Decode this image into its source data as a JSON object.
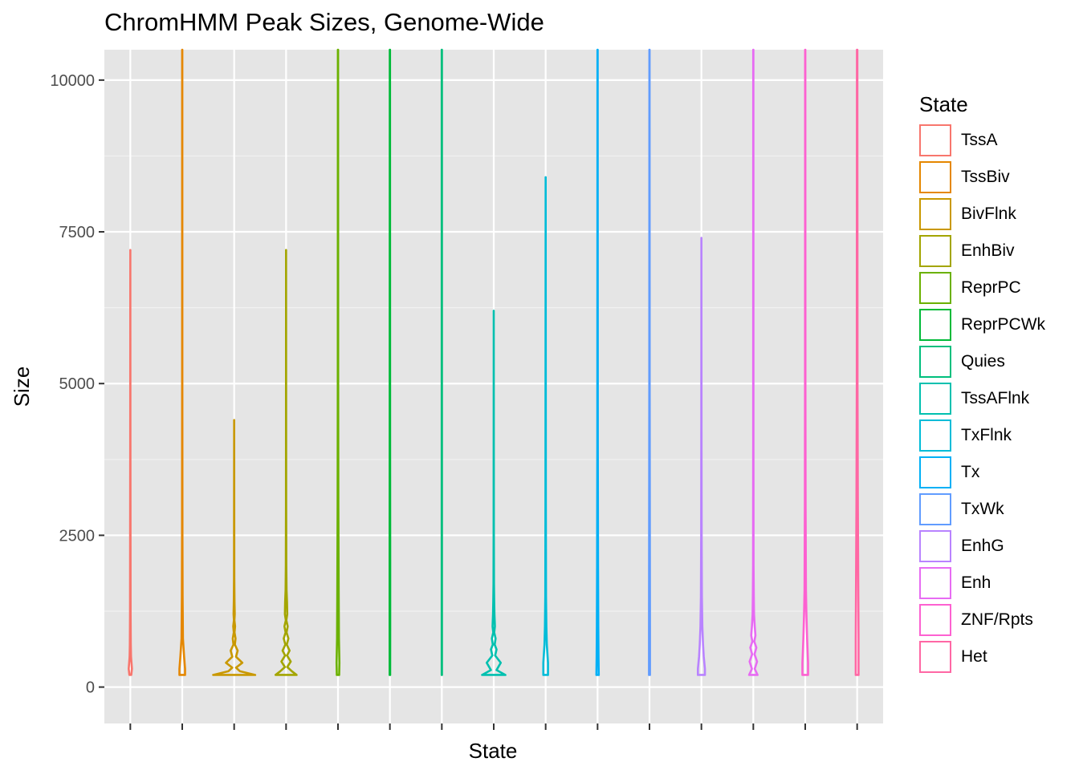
{
  "chart_data": {
    "type": "violin",
    "title": "ChromHMM Peak Sizes, Genome-Wide",
    "xlabel": "State",
    "ylabel": "Size",
    "ylim": [
      -600,
      10500
    ],
    "yticks": [
      0,
      2500,
      5000,
      7500,
      10000
    ],
    "y_tick_labels": [
      "0",
      "2500",
      "5000",
      "7500",
      "10000"
    ],
    "grid": true,
    "x_tick_labels_shown": false,
    "legend_title": "State",
    "legend_position": "right",
    "series": [
      {
        "name": "TssA",
        "color": "#F8766D",
        "max": 7200,
        "shape": [
          [
            200,
            0.04
          ],
          [
            300,
            0.07
          ],
          [
            500,
            0.03
          ],
          [
            700,
            0.02
          ],
          [
            1200,
            0.012
          ],
          [
            2500,
            0.008
          ],
          [
            4000,
            0.004
          ],
          [
            7200,
            0
          ]
        ]
      },
      {
        "name": "TssBiv",
        "color": "#E58700",
        "max": 10500,
        "shape": [
          [
            200,
            0.12
          ],
          [
            300,
            0.12
          ],
          [
            500,
            0.08
          ],
          [
            800,
            0.03
          ],
          [
            1500,
            0.015
          ],
          [
            2500,
            0.008
          ],
          [
            5000,
            0.004
          ],
          [
            10500,
            0.003
          ]
        ]
      },
      {
        "name": "BivFlnk",
        "color": "#C99800",
        "max": 4400,
        "shape": [
          [
            200,
            0.9
          ],
          [
            260,
            0.25
          ],
          [
            320,
            0.08
          ],
          [
            400,
            0.35
          ],
          [
            500,
            0.08
          ],
          [
            600,
            0.15
          ],
          [
            700,
            0.03
          ],
          [
            800,
            0.06
          ],
          [
            900,
            0.015
          ],
          [
            1000,
            0.04
          ],
          [
            1100,
            0.01
          ],
          [
            1200,
            0.025
          ],
          [
            1400,
            0.015
          ],
          [
            1600,
            0.01
          ],
          [
            1800,
            0.006
          ],
          [
            2500,
            0.004
          ],
          [
            4400,
            0
          ]
        ]
      },
      {
        "name": "EnhBiv",
        "color": "#A3A500",
        "max": 7200,
        "shape": [
          [
            200,
            0.45
          ],
          [
            260,
            0.25
          ],
          [
            330,
            0.05
          ],
          [
            420,
            0.2
          ],
          [
            520,
            0.04
          ],
          [
            600,
            0.15
          ],
          [
            700,
            0.03
          ],
          [
            800,
            0.1
          ],
          [
            900,
            0.02
          ],
          [
            1000,
            0.07
          ],
          [
            1100,
            0.01
          ],
          [
            1200,
            0.05
          ],
          [
            1400,
            0.04
          ],
          [
            1600,
            0.02
          ],
          [
            2000,
            0.01
          ],
          [
            3000,
            0.004
          ],
          [
            7200,
            0
          ]
        ]
      },
      {
        "name": "ReprPC",
        "color": "#6BB100",
        "max": 10500,
        "shape": [
          [
            200,
            0.05
          ],
          [
            400,
            0.06
          ],
          [
            800,
            0.04
          ],
          [
            1500,
            0.03
          ],
          [
            3000,
            0.015
          ],
          [
            5000,
            0.008
          ],
          [
            10500,
            0.004
          ]
        ]
      },
      {
        "name": "ReprPCWk",
        "color": "#00BA38",
        "max": 10500,
        "shape": [
          [
            200,
            0.01
          ],
          [
            1000,
            0.012
          ],
          [
            2000,
            0.012
          ],
          [
            4000,
            0.008
          ],
          [
            10500,
            0.004
          ]
        ]
      },
      {
        "name": "Quies",
        "color": "#00BF7D",
        "max": 10500,
        "shape": [
          [
            200,
            0.005
          ],
          [
            2000,
            0.005
          ],
          [
            10500,
            0.004
          ]
        ]
      },
      {
        "name": "TssAFlnk",
        "color": "#00C0AF",
        "max": 6200,
        "shape": [
          [
            200,
            0.5
          ],
          [
            280,
            0.12
          ],
          [
            400,
            0.3
          ],
          [
            520,
            0.06
          ],
          [
            620,
            0.12
          ],
          [
            700,
            0.04
          ],
          [
            800,
            0.08
          ],
          [
            900,
            0.02
          ],
          [
            1000,
            0.05
          ],
          [
            1200,
            0.03
          ],
          [
            1400,
            0.02
          ],
          [
            1700,
            0.01
          ],
          [
            2500,
            0.005
          ],
          [
            6200,
            0
          ]
        ]
      },
      {
        "name": "TxFlnk",
        "color": "#00BCD8",
        "max": 8400,
        "shape": [
          [
            200,
            0.1
          ],
          [
            400,
            0.1
          ],
          [
            700,
            0.05
          ],
          [
            1000,
            0.03
          ],
          [
            1500,
            0.015
          ],
          [
            3000,
            0.008
          ],
          [
            8400,
            0
          ]
        ]
      },
      {
        "name": "Tx",
        "color": "#00B0F6",
        "max": 10500,
        "shape": [
          [
            200,
            0.05
          ],
          [
            500,
            0.04
          ],
          [
            1000,
            0.03
          ],
          [
            2000,
            0.02
          ],
          [
            4000,
            0.01
          ],
          [
            10500,
            0.004
          ]
        ]
      },
      {
        "name": "TxWk",
        "color": "#619CFF",
        "max": 10500,
        "shape": [
          [
            200,
            0.02
          ],
          [
            1000,
            0.02
          ],
          [
            2500,
            0.015
          ],
          [
            5000,
            0.008
          ],
          [
            10500,
            0.004
          ]
        ]
      },
      {
        "name": "EnhG",
        "color": "#B983FF",
        "max": 7400,
        "shape": [
          [
            200,
            0.15
          ],
          [
            300,
            0.15
          ],
          [
            500,
            0.1
          ],
          [
            700,
            0.07
          ],
          [
            1000,
            0.04
          ],
          [
            1500,
            0.02
          ],
          [
            2500,
            0.01
          ],
          [
            4000,
            0.005
          ],
          [
            7400,
            0
          ]
        ]
      },
      {
        "name": "Enh",
        "color": "#E76BF3",
        "max": 10500,
        "shape": [
          [
            200,
            0.18
          ],
          [
            300,
            0.06
          ],
          [
            420,
            0.16
          ],
          [
            540,
            0.05
          ],
          [
            650,
            0.13
          ],
          [
            750,
            0.04
          ],
          [
            850,
            0.09
          ],
          [
            1000,
            0.06
          ],
          [
            1200,
            0.03
          ],
          [
            1500,
            0.02
          ],
          [
            2000,
            0.01
          ],
          [
            4000,
            0.005
          ],
          [
            10500,
            0.003
          ]
        ]
      },
      {
        "name": "ZNF/Rpts",
        "color": "#FD61D1",
        "max": 10500,
        "shape": [
          [
            200,
            0.12
          ],
          [
            400,
            0.12
          ],
          [
            800,
            0.08
          ],
          [
            1200,
            0.05
          ],
          [
            1600,
            0.03
          ],
          [
            3000,
            0.015
          ],
          [
            5000,
            0.008
          ],
          [
            10500,
            0.004
          ]
        ]
      },
      {
        "name": "Het",
        "color": "#FF67A4",
        "max": 10500,
        "shape": [
          [
            200,
            0.06
          ],
          [
            800,
            0.06
          ],
          [
            1500,
            0.05
          ],
          [
            3000,
            0.03
          ],
          [
            5000,
            0.015
          ],
          [
            10500,
            0.008
          ]
        ]
      }
    ]
  }
}
